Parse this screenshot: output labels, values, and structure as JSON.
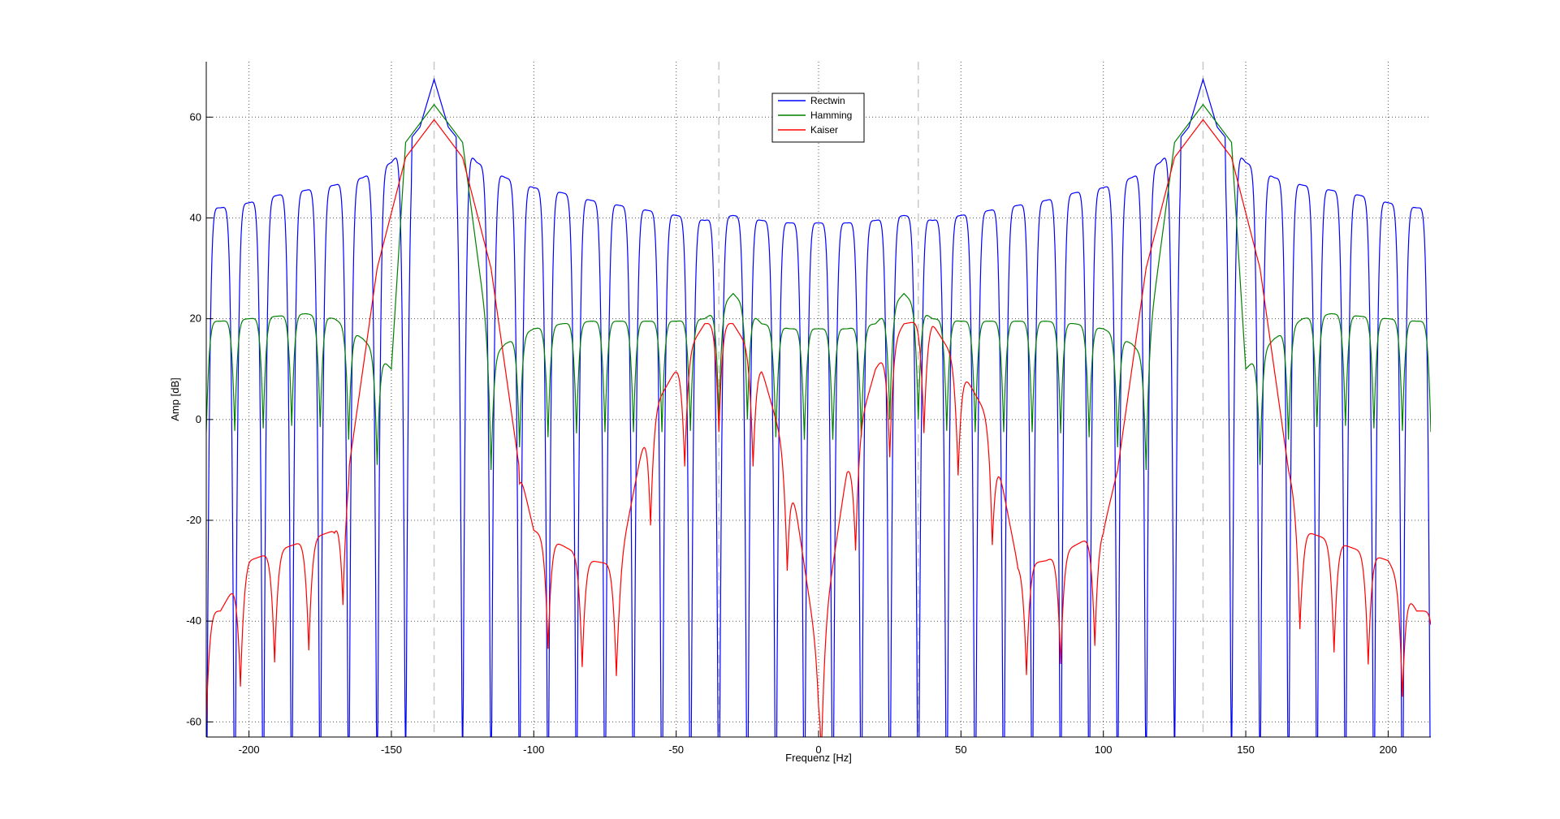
{
  "chart_data": {
    "type": "line",
    "title": "",
    "xlabel": "Frequenz [Hz]",
    "ylabel": "Amp [dB]",
    "xlim": [
      -215,
      215
    ],
    "ylim": [
      -63,
      71
    ],
    "xticks": [
      -200,
      -150,
      -100,
      -50,
      0,
      50,
      100,
      150,
      200
    ],
    "yticks": [
      -60,
      -40,
      -20,
      0,
      20,
      40,
      60
    ],
    "grid": true,
    "legend_position": "top-center",
    "signal_peaks_hz": [
      -135,
      135
    ],
    "reference_lines_hz": [
      -135,
      -35,
      35,
      135
    ],
    "series": [
      {
        "name": "Rectwin",
        "color": "#0000ff",
        "x": [
          -210,
          -200,
          -190,
          -180,
          -170,
          -160,
          -150,
          -140,
          -135,
          -130,
          -120,
          -110,
          -100,
          -90,
          -80,
          -70,
          -60,
          -50,
          -40,
          -30,
          -20,
          -10,
          0,
          10,
          20,
          30,
          40,
          50,
          60,
          70,
          80,
          90,
          100,
          110,
          120,
          130,
          135,
          140,
          150,
          160,
          170,
          180,
          190,
          200,
          210
        ],
        "y": [
          42,
          43,
          44.5,
          45.5,
          46.5,
          48,
          51,
          58,
          67.5,
          58,
          51,
          48,
          46,
          45,
          43.5,
          42.5,
          41.5,
          40.5,
          39.5,
          40.5,
          39.5,
          39,
          39,
          39,
          39.5,
          40.5,
          39.5,
          40.5,
          41.5,
          42.5,
          43.5,
          45,
          46,
          48,
          51,
          58,
          67.5,
          58,
          51,
          48,
          46.5,
          45.5,
          44.5,
          43,
          42
        ]
      },
      {
        "name": "Hamming",
        "color": "#008000",
        "x": [
          -210,
          -200,
          -190,
          -180,
          -170,
          -160,
          -150,
          -145,
          -135,
          -125,
          -115,
          -110,
          -100,
          -90,
          -80,
          -70,
          -60,
          -50,
          -40,
          -35,
          -30,
          -20,
          -10,
          0,
          10,
          20,
          30,
          35,
          40,
          50,
          60,
          70,
          80,
          90,
          100,
          110,
          115,
          125,
          135,
          145,
          150,
          160,
          170,
          180,
          190,
          200,
          210
        ],
        "y": [
          19.5,
          20,
          20.5,
          21,
          20,
          16,
          10,
          55,
          62.5,
          55,
          12,
          15,
          18,
          19,
          19.5,
          19.5,
          19.5,
          19.5,
          20,
          22,
          25,
          19,
          18,
          18,
          18,
          19,
          25,
          22,
          20,
          19.5,
          19.5,
          19.5,
          19.5,
          19,
          18,
          15,
          12,
          55,
          62.5,
          55,
          10,
          16,
          20,
          21,
          20.5,
          20,
          19.5
        ]
      },
      {
        "name": "Kaiser",
        "color": "#ff0000",
        "x": [
          -210,
          -200,
          -190,
          -180,
          -170,
          -165,
          -155,
          -145,
          -135,
          -125,
          -115,
          -105,
          -100,
          -90,
          -80,
          -70,
          -60,
          -50,
          -40,
          -35,
          -30,
          -20,
          -10,
          0,
          10,
          20,
          30,
          35,
          40,
          50,
          60,
          70,
          80,
          90,
          100,
          105,
          115,
          125,
          135,
          145,
          155,
          165,
          170,
          180,
          190,
          200,
          210
        ],
        "y": [
          -38,
          -28,
          -26,
          -24,
          -22,
          -10,
          30,
          52,
          59.5,
          52,
          30,
          -10,
          -22,
          -25,
          -28,
          -29,
          0,
          10,
          19,
          19.5,
          19,
          10,
          -10,
          -48,
          -10,
          10,
          19,
          19.5,
          19,
          10,
          0,
          -29,
          -28,
          -25,
          -22,
          -10,
          30,
          52,
          59.5,
          52,
          30,
          -10,
          -22,
          -24,
          -26,
          -28,
          -38
        ]
      }
    ]
  }
}
